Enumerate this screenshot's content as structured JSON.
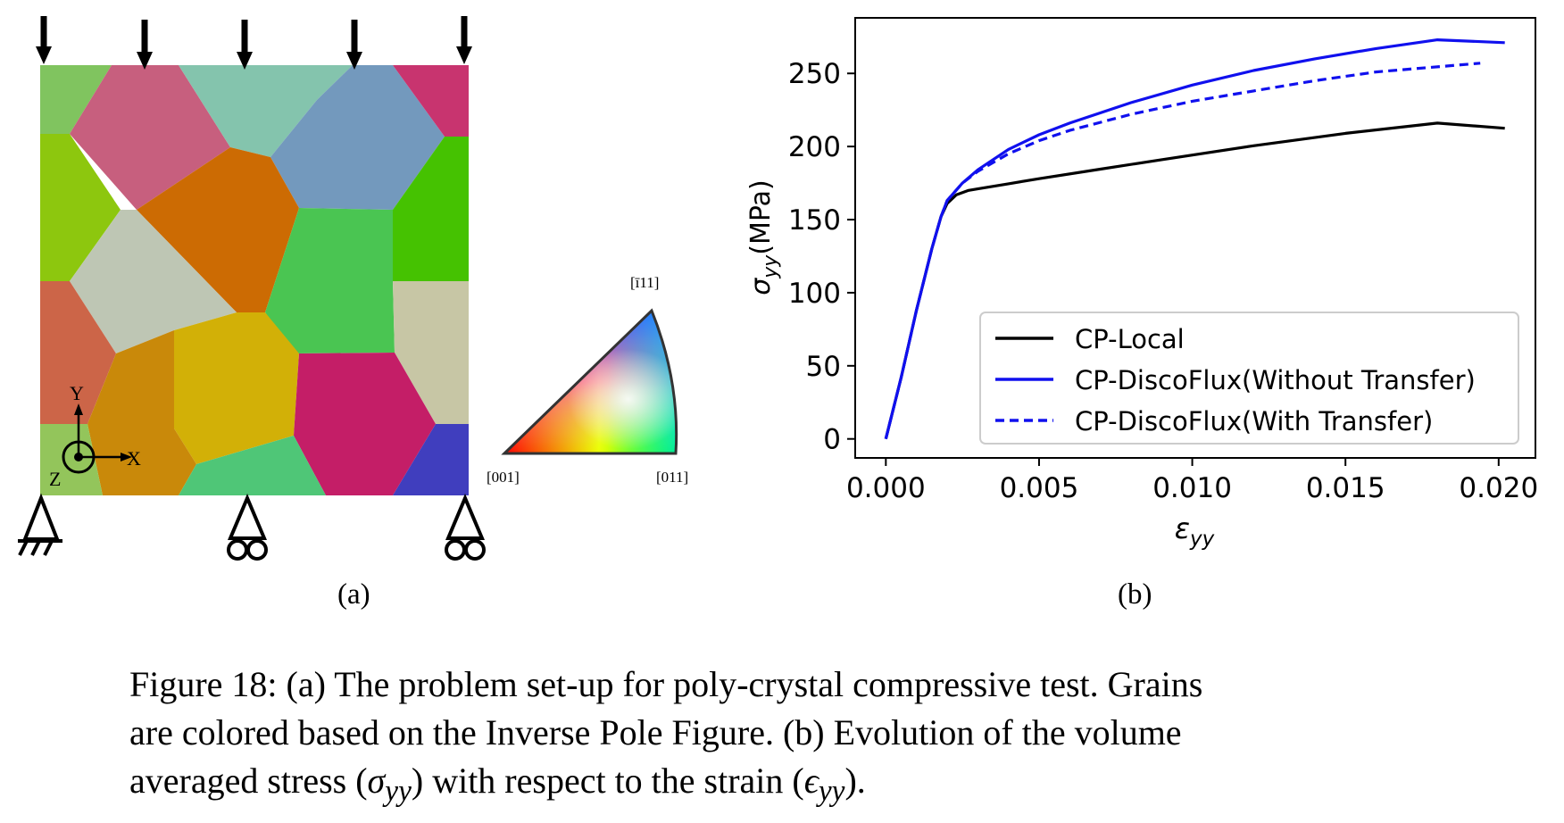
{
  "panel_a": {
    "axes": {
      "y": "Y",
      "x": "X",
      "z": "Z"
    },
    "ipf_labels": {
      "top": "[ī11]",
      "left": "[001]",
      "right": "[011]"
    },
    "grain_colors": [
      "#80c45f",
      "#c75f7e",
      "#84c4ad",
      "#7399bd",
      "#c8346f",
      "#8dc70e",
      "#cc6b03",
      "#45c201",
      "#bec6b4",
      "#4ac552",
      "#cc6548",
      "#d2b007",
      "#c7c6a5",
      "#c9890a",
      "#c41e67",
      "#93c55b",
      "#4fc677",
      "#403ebe"
    ],
    "subcaption": "(a)"
  },
  "panel_b": {
    "subcaption": "(b)"
  },
  "chart_data": {
    "type": "line",
    "xlabel": "εyy",
    "ylabel": "σyy(MPa)",
    "xlim": [
      -0.001,
      0.0212
    ],
    "ylim": [
      -13,
      288
    ],
    "xticks": [
      "0.000",
      "0.005",
      "0.010",
      "0.015",
      "0.020"
    ],
    "yticks": [
      "0",
      "50",
      "100",
      "150",
      "200",
      "250"
    ],
    "legend_position": "lower-right",
    "grid": false,
    "series": [
      {
        "name": "CP-Local",
        "color": "#000000",
        "dash": "solid",
        "x": [
          0,
          0.0005,
          0.001,
          0.0015,
          0.0018,
          0.002,
          0.0023,
          0.0027,
          0.003,
          0.004,
          0.005,
          0.007,
          0.009,
          0.012,
          0.015,
          0.018,
          0.0202
        ],
        "y": [
          0,
          42,
          88,
          130,
          152,
          161,
          167,
          170,
          171,
          174.5,
          178,
          184.5,
          191,
          200.5,
          209,
          216,
          212.5
        ]
      },
      {
        "name": "CP-DiscoFlux(Without Transfer)",
        "color": "#1010ee",
        "dash": "solid",
        "x": [
          0,
          0.0005,
          0.001,
          0.0015,
          0.0018,
          0.002,
          0.0025,
          0.003,
          0.004,
          0.005,
          0.006,
          0.008,
          0.01,
          0.012,
          0.014,
          0.016,
          0.018,
          0.0202
        ],
        "y": [
          0,
          42,
          88,
          130,
          152,
          163,
          175,
          184,
          198,
          208,
          216,
          230,
          242,
          252,
          260,
          267,
          273,
          271
        ]
      },
      {
        "name": "CP-DiscoFlux(With Transfer)",
        "color": "#1010ee",
        "dash": "dashed",
        "x": [
          0,
          0.0005,
          0.001,
          0.0015,
          0.0018,
          0.002,
          0.0025,
          0.003,
          0.004,
          0.005,
          0.006,
          0.008,
          0.01,
          0.012,
          0.014,
          0.016,
          0.0194
        ],
        "y": [
          0,
          42,
          88,
          130,
          152,
          163,
          175,
          183,
          195,
          204,
          211,
          222,
          231,
          238,
          245,
          251,
          257
        ]
      }
    ]
  },
  "caption": {
    "line1": "Figure 18:  (a) The problem set-up for poly-crystal compressive test.  Grains",
    "line2": "are colored based on the Inverse Pole Figure.  (b) Evolution of the volume",
    "line3_a": "averaged stress (",
    "line3_sym1": "σ",
    "line3_sub1": "yy",
    "line3_b": ") with respect to the strain (",
    "line3_sym2": "ϵ",
    "line3_sub2": "yy",
    "line3_c": ")."
  }
}
